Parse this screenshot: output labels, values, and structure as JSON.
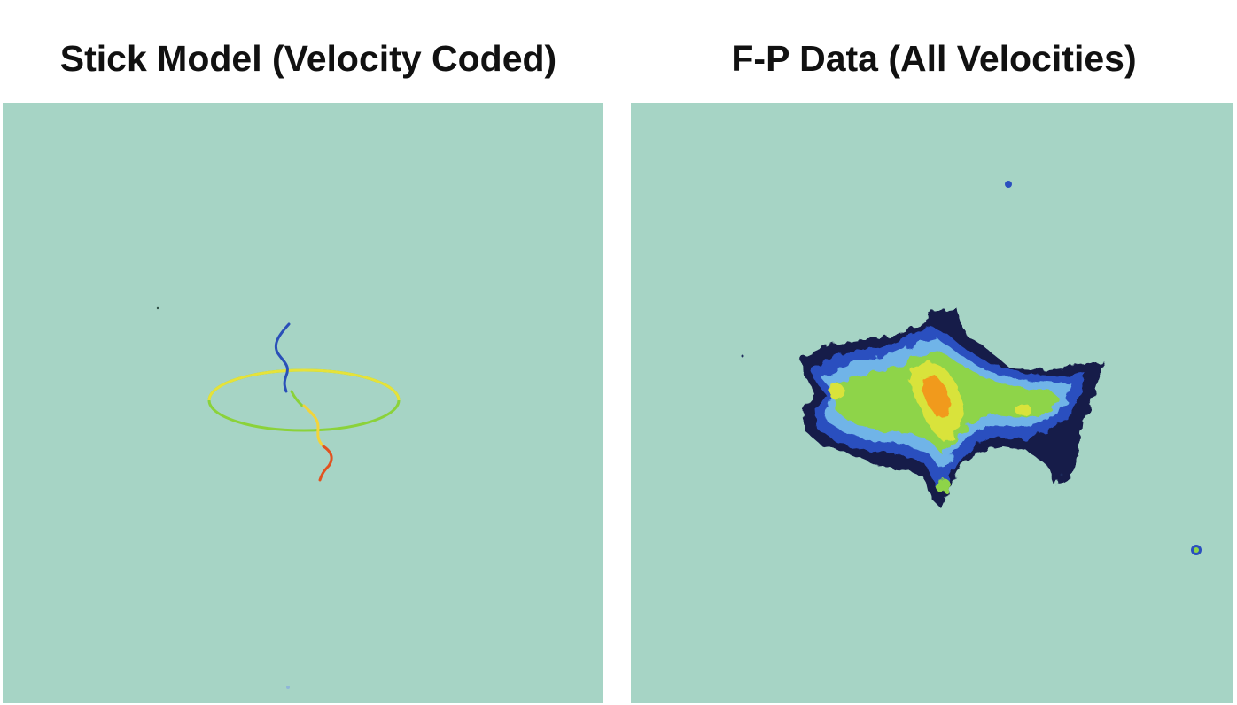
{
  "panels": {
    "left": {
      "title": "Stick Model (Velocity Coded)",
      "background_color": "#a6d4c5",
      "stick_colors": {
        "approaching_end": "#2a4fb8",
        "ring": "#8bd23a",
        "ring_front": "#e6e23a",
        "center": "#f3d43a",
        "receding_end": "#e2521f"
      }
    },
    "right": {
      "title": "F-P Data (All Velocities)",
      "background_color": "#a6d4c5",
      "intensity_colors": {
        "lowest": "#141a4a",
        "low": "#2b4fbf",
        "low_mid": "#6fb4e8",
        "mid": "#8ed44a",
        "high": "#d9e33a",
        "peak": "#f19a1c"
      }
    }
  }
}
